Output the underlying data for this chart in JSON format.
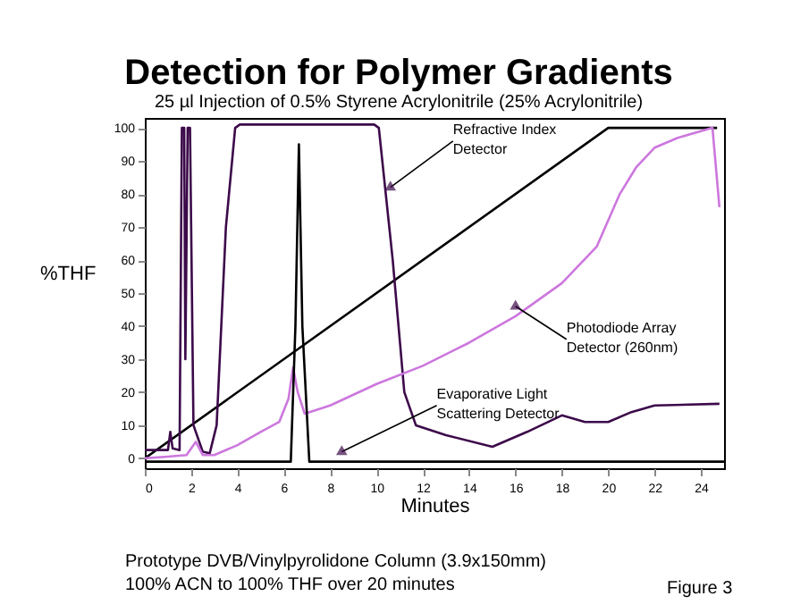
{
  "chart_data": {
    "type": "line",
    "title": "Detection for Polymer Gradients",
    "subtitle": "25 µl Injection of 0.5% Styrene Acrylonitrile (25% Acrylonitrile)",
    "xlabel": "Minutes",
    "ylabel": "%THF",
    "xlim": [
      0,
      25
    ],
    "xticks": [
      0,
      2,
      4,
      6,
      8,
      10,
      12,
      14,
      16,
      18,
      20,
      22,
      24
    ],
    "ylim": [
      -3,
      103
    ],
    "yticks": [
      0,
      10,
      20,
      30,
      40,
      50,
      60,
      70,
      80,
      90,
      100
    ],
    "grid": false,
    "legend": false,
    "line_style": "solid",
    "marker": "none",
    "series": [
      {
        "color": "#000000",
        "x": [
          0,
          20,
          24.7
        ],
        "values": [
          0,
          100,
          100
        ]
      },
      {
        "color": "#3c0a4a",
        "x": [
          0,
          1,
          1.1,
          1.2,
          1.5,
          1.6,
          1.7,
          1.75,
          1.85,
          1.95,
          2.1,
          2.5,
          2.8,
          3.1,
          3.5,
          3.9,
          4.1,
          9.9,
          10.1,
          10.7,
          11.2,
          11.7,
          13,
          15,
          16.5,
          18,
          19,
          20,
          21,
          22,
          24.8
        ],
        "values": [
          2.5,
          2.5,
          8,
          3,
          2.5,
          100,
          100,
          30,
          100,
          100,
          10,
          2,
          1.5,
          10,
          70,
          100,
          101,
          101,
          100,
          60,
          20,
          10,
          7,
          3.5,
          8,
          13,
          11,
          11,
          14,
          16,
          16.5
        ]
      },
      {
        "color": "#cc77dd",
        "x": [
          0,
          1,
          1.8,
          2.2,
          2.5,
          3,
          4,
          5,
          5.8,
          6.2,
          6.4,
          6.6,
          6.9,
          8,
          10,
          12,
          14,
          16,
          18,
          19.5,
          20.5,
          21.2,
          22,
          23,
          24.5,
          24.8
        ],
        "values": [
          0,
          0.5,
          1,
          5,
          1,
          1,
          4,
          8,
          11,
          18,
          27.5,
          20,
          13.5,
          16,
          22.5,
          28,
          35,
          43,
          53,
          64,
          80,
          88,
          94,
          97,
          100,
          76
        ]
      },
      {
        "color": "#000000",
        "x": [
          0,
          6.3,
          6.5,
          6.65,
          6.8,
          7.1,
          25
        ],
        "values": [
          -1,
          -1,
          40,
          95,
          40,
          -1,
          -1
        ]
      }
    ],
    "annotations": [
      {
        "text": "Refractive Index Detector",
        "x": 10.6,
        "y": 82
      },
      {
        "text": "Photodiode Array Detector (260nm)",
        "x": 16,
        "y": 46
      },
      {
        "text": "Evaporative Light Scattering Detector",
        "x": 8.5,
        "y": 2
      },
      "Prototype DVB/Vinylpyrolidone Column (3.9x150mm)",
      "100% ACN to 100% THF over 20 minutes",
      "Figure 3"
    ]
  }
}
